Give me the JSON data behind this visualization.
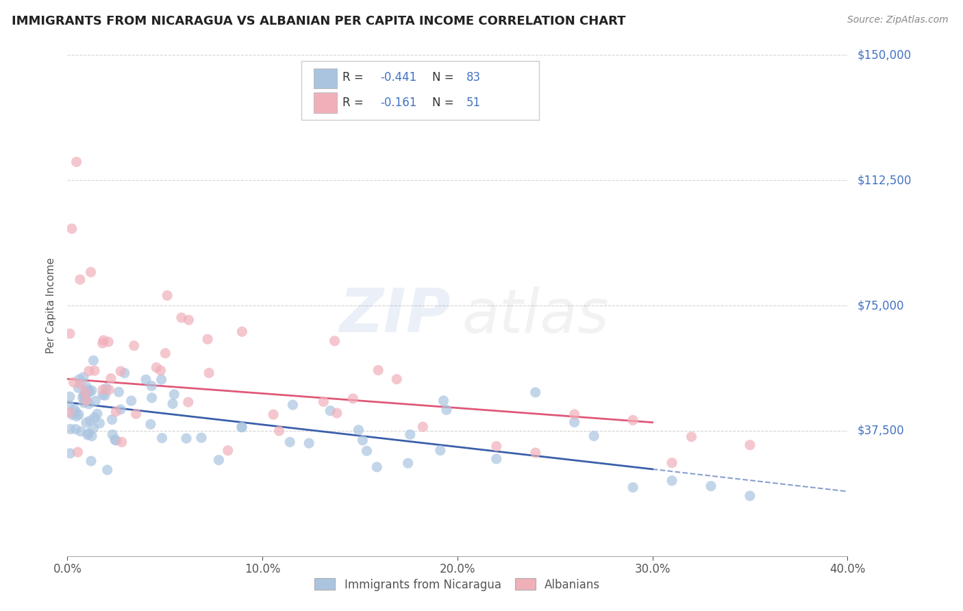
{
  "title": "IMMIGRANTS FROM NICARAGUA VS ALBANIAN PER CAPITA INCOME CORRELATION CHART",
  "source": "Source: ZipAtlas.com",
  "ylabel": "Per Capita Income",
  "xlim": [
    0.0,
    40.0
  ],
  "ylim": [
    0,
    150000
  ],
  "yticks": [
    0,
    37500,
    75000,
    112500,
    150000
  ],
  "ytick_labels": [
    "",
    "$37,500",
    "$75,000",
    "$112,500",
    "$150,000"
  ],
  "xtick_labels": [
    "0.0%",
    "10.0%",
    "20.0%",
    "30.0%",
    "40.0%"
  ],
  "xtick_vals": [
    0,
    10,
    20,
    30,
    40
  ],
  "blue_R": -0.441,
  "blue_N": 83,
  "pink_R": -0.161,
  "pink_N": 51,
  "blue_color": "#aac4e0",
  "pink_color": "#f0b0ba",
  "blue_line_color": "#3a5faa",
  "pink_line_color": "#e05878",
  "background_color": "#ffffff",
  "grid_color": "#c8c8c8",
  "title_color": "#222222",
  "axis_label_color": "#555555",
  "ytick_color": "#4472c4",
  "legend_label1": "Immigrants from Nicaragua",
  "legend_label2": "Albanians",
  "blue_line_x0": 0,
  "blue_line_y0": 46000,
  "blue_line_x1": 30,
  "blue_line_y1": 26000,
  "blue_dash_x0": 30,
  "blue_dash_x1": 40,
  "pink_line_x0": 0,
  "pink_line_y0": 53000,
  "pink_line_x1": 30,
  "pink_line_y1": 40000
}
